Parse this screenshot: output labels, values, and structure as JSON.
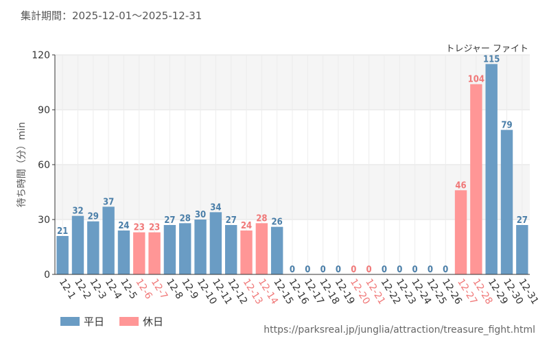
{
  "header": {
    "period_label": "集計期間：2025-12-01～2025-12-31"
  },
  "chart_data": {
    "type": "bar",
    "title": "トレジャー ファイト",
    "ylabel": "待ち時間（分）min",
    "xlabel": "",
    "ylim": [
      0,
      120
    ],
    "yticks": [
      0,
      30,
      60,
      90,
      120
    ],
    "categories": [
      "12-1",
      "12-2",
      "12-3",
      "12-4",
      "12-5",
      "12-6",
      "12-7",
      "12-8",
      "12-9",
      "12-10",
      "12-11",
      "12-12",
      "12-13",
      "12-14",
      "12-15",
      "12-16",
      "12-17",
      "12-18",
      "12-19",
      "12-20",
      "12-21",
      "12-22",
      "12-23",
      "12-24",
      "12-25",
      "12-26",
      "12-27",
      "12-28",
      "12-29",
      "12-30",
      "12-31"
    ],
    "values": [
      21,
      32,
      29,
      37,
      24,
      23,
      23,
      27,
      28,
      30,
      34,
      27,
      24,
      28,
      26,
      0,
      0,
      0,
      0,
      0,
      0,
      0,
      0,
      0,
      0,
      0,
      46,
      104,
      115,
      79,
      27
    ],
    "day_type": [
      "weekday",
      "weekday",
      "weekday",
      "weekday",
      "weekday",
      "holiday",
      "holiday",
      "weekday",
      "weekday",
      "weekday",
      "weekday",
      "weekday",
      "holiday",
      "holiday",
      "weekday",
      "weekday",
      "weekday",
      "weekday",
      "weekday",
      "holiday",
      "holiday",
      "weekday",
      "weekday",
      "weekday",
      "weekday",
      "weekday",
      "holiday",
      "holiday",
      "weekday",
      "weekday",
      "weekday"
    ],
    "legend": [
      {
        "key": "weekday",
        "label": "平日",
        "color": "#6a9cc4"
      },
      {
        "key": "holiday",
        "label": "休日",
        "color": "#ff9696"
      }
    ],
    "label_colors": {
      "weekday": "#4a7ea8",
      "holiday": "#f07878"
    },
    "grid": true
  },
  "footer": {
    "source_url": "https://parksreal.jp/junglia/attraction/treasure_fight.html"
  }
}
